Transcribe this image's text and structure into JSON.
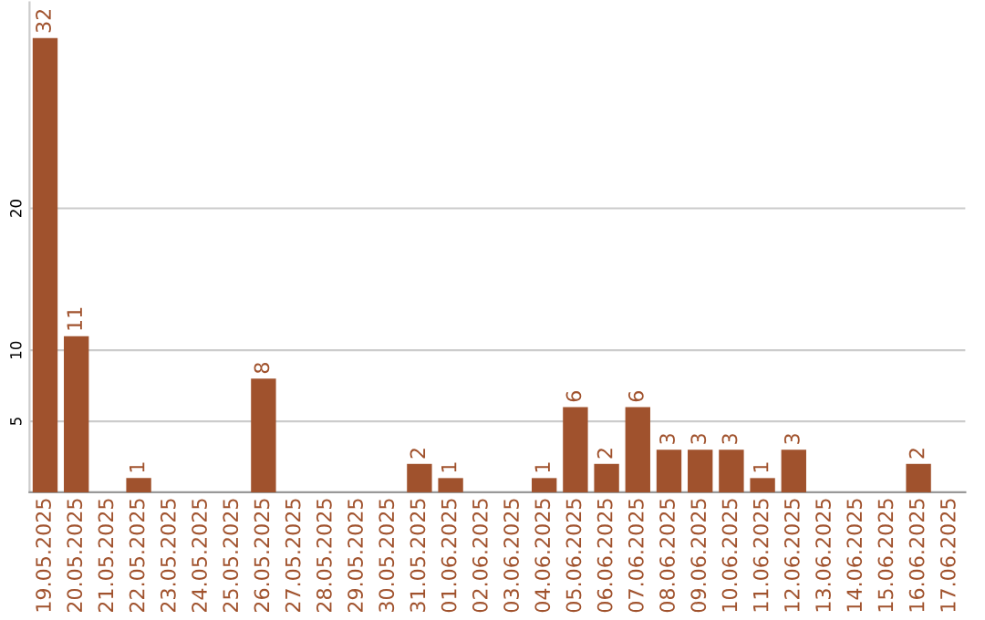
{
  "chart_data": {
    "type": "bar",
    "categories": [
      "19.05.2025",
      "20.05.2025",
      "21.05.2025",
      "22.05.2025",
      "23.05.2025",
      "24.05.2025",
      "25.05.2025",
      "26.05.2025",
      "27.05.2025",
      "28.05.2025",
      "29.05.2025",
      "30.05.2025",
      "31.05.2025",
      "01.06.2025",
      "02.06.2025",
      "03.06.2025",
      "04.06.2025",
      "05.06.2025",
      "06.06.2025",
      "07.06.2025",
      "08.06.2025",
      "09.06.2025",
      "10.06.2025",
      "11.06.2025",
      "12.06.2025",
      "13.06.2025",
      "14.06.2025",
      "15.06.2025",
      "16.06.2025",
      "17.06.2025"
    ],
    "values": [
      32,
      11,
      0,
      1,
      0,
      0,
      0,
      8,
      0,
      0,
      0,
      0,
      2,
      1,
      0,
      0,
      1,
      6,
      2,
      6,
      3,
      3,
      3,
      1,
      3,
      0,
      0,
      0,
      2,
      0
    ],
    "value_labels": [
      "32",
      "11",
      null,
      "1",
      null,
      null,
      null,
      "8",
      null,
      null,
      null,
      null,
      "2",
      "1",
      null,
      null,
      "1",
      "6",
      "2",
      "6",
      "3",
      "3",
      "3",
      "1",
      "3",
      null,
      null,
      null,
      "2",
      null
    ],
    "color": "#a0522d",
    "ylim": [
      0,
      34.5
    ],
    "yticks": [
      5,
      10,
      20
    ],
    "grid": "y"
  }
}
